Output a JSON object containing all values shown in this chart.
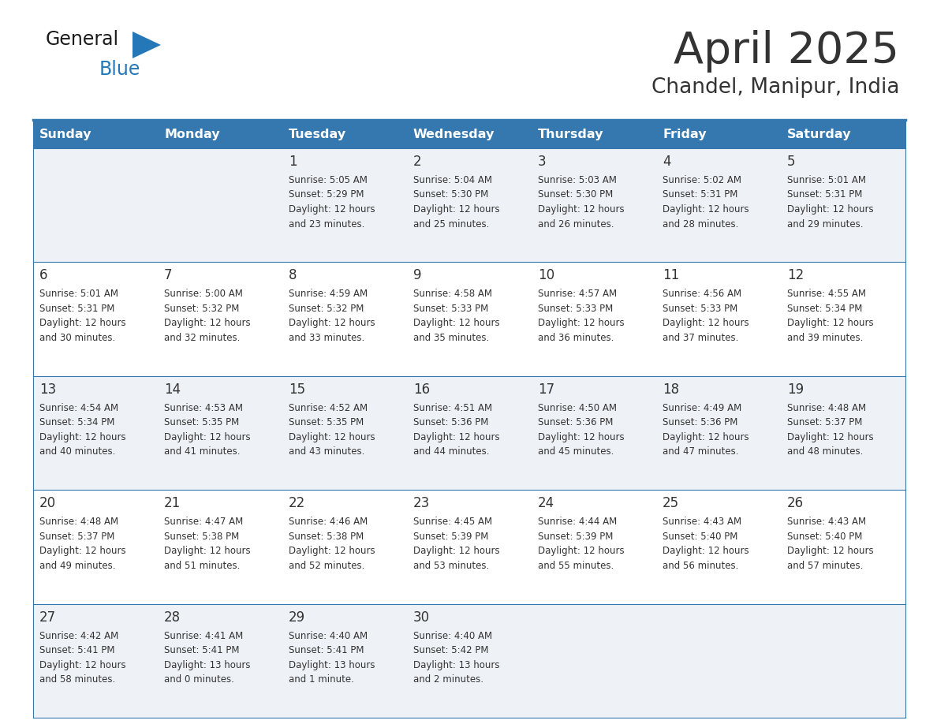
{
  "title": "April 2025",
  "subtitle": "Chandel, Manipur, India",
  "header_bg": "#3578b0",
  "header_text": "#ffffff",
  "cell_bg_odd": "#eef2f7",
  "cell_bg_even": "#ffffff",
  "border_color": "#3578b0",
  "text_color": "#333333",
  "logo_general_color": "#1a1a1a",
  "logo_blue_color": "#2478b8",
  "logo_triangle_color": "#2478b8",
  "days_of_week": [
    "Sunday",
    "Monday",
    "Tuesday",
    "Wednesday",
    "Thursday",
    "Friday",
    "Saturday"
  ],
  "weeks": [
    [
      {
        "day": "",
        "sunrise": "",
        "sunset": "",
        "daylight": ""
      },
      {
        "day": "",
        "sunrise": "",
        "sunset": "",
        "daylight": ""
      },
      {
        "day": "1",
        "sunrise": "Sunrise: 5:05 AM",
        "sunset": "Sunset: 5:29 PM",
        "daylight": "Daylight: 12 hours\nand 23 minutes."
      },
      {
        "day": "2",
        "sunrise": "Sunrise: 5:04 AM",
        "sunset": "Sunset: 5:30 PM",
        "daylight": "Daylight: 12 hours\nand 25 minutes."
      },
      {
        "day": "3",
        "sunrise": "Sunrise: 5:03 AM",
        "sunset": "Sunset: 5:30 PM",
        "daylight": "Daylight: 12 hours\nand 26 minutes."
      },
      {
        "day": "4",
        "sunrise": "Sunrise: 5:02 AM",
        "sunset": "Sunset: 5:31 PM",
        "daylight": "Daylight: 12 hours\nand 28 minutes."
      },
      {
        "day": "5",
        "sunrise": "Sunrise: 5:01 AM",
        "sunset": "Sunset: 5:31 PM",
        "daylight": "Daylight: 12 hours\nand 29 minutes."
      }
    ],
    [
      {
        "day": "6",
        "sunrise": "Sunrise: 5:01 AM",
        "sunset": "Sunset: 5:31 PM",
        "daylight": "Daylight: 12 hours\nand 30 minutes."
      },
      {
        "day": "7",
        "sunrise": "Sunrise: 5:00 AM",
        "sunset": "Sunset: 5:32 PM",
        "daylight": "Daylight: 12 hours\nand 32 minutes."
      },
      {
        "day": "8",
        "sunrise": "Sunrise: 4:59 AM",
        "sunset": "Sunset: 5:32 PM",
        "daylight": "Daylight: 12 hours\nand 33 minutes."
      },
      {
        "day": "9",
        "sunrise": "Sunrise: 4:58 AM",
        "sunset": "Sunset: 5:33 PM",
        "daylight": "Daylight: 12 hours\nand 35 minutes."
      },
      {
        "day": "10",
        "sunrise": "Sunrise: 4:57 AM",
        "sunset": "Sunset: 5:33 PM",
        "daylight": "Daylight: 12 hours\nand 36 minutes."
      },
      {
        "day": "11",
        "sunrise": "Sunrise: 4:56 AM",
        "sunset": "Sunset: 5:33 PM",
        "daylight": "Daylight: 12 hours\nand 37 minutes."
      },
      {
        "day": "12",
        "sunrise": "Sunrise: 4:55 AM",
        "sunset": "Sunset: 5:34 PM",
        "daylight": "Daylight: 12 hours\nand 39 minutes."
      }
    ],
    [
      {
        "day": "13",
        "sunrise": "Sunrise: 4:54 AM",
        "sunset": "Sunset: 5:34 PM",
        "daylight": "Daylight: 12 hours\nand 40 minutes."
      },
      {
        "day": "14",
        "sunrise": "Sunrise: 4:53 AM",
        "sunset": "Sunset: 5:35 PM",
        "daylight": "Daylight: 12 hours\nand 41 minutes."
      },
      {
        "day": "15",
        "sunrise": "Sunrise: 4:52 AM",
        "sunset": "Sunset: 5:35 PM",
        "daylight": "Daylight: 12 hours\nand 43 minutes."
      },
      {
        "day": "16",
        "sunrise": "Sunrise: 4:51 AM",
        "sunset": "Sunset: 5:36 PM",
        "daylight": "Daylight: 12 hours\nand 44 minutes."
      },
      {
        "day": "17",
        "sunrise": "Sunrise: 4:50 AM",
        "sunset": "Sunset: 5:36 PM",
        "daylight": "Daylight: 12 hours\nand 45 minutes."
      },
      {
        "day": "18",
        "sunrise": "Sunrise: 4:49 AM",
        "sunset": "Sunset: 5:36 PM",
        "daylight": "Daylight: 12 hours\nand 47 minutes."
      },
      {
        "day": "19",
        "sunrise": "Sunrise: 4:48 AM",
        "sunset": "Sunset: 5:37 PM",
        "daylight": "Daylight: 12 hours\nand 48 minutes."
      }
    ],
    [
      {
        "day": "20",
        "sunrise": "Sunrise: 4:48 AM",
        "sunset": "Sunset: 5:37 PM",
        "daylight": "Daylight: 12 hours\nand 49 minutes."
      },
      {
        "day": "21",
        "sunrise": "Sunrise: 4:47 AM",
        "sunset": "Sunset: 5:38 PM",
        "daylight": "Daylight: 12 hours\nand 51 minutes."
      },
      {
        "day": "22",
        "sunrise": "Sunrise: 4:46 AM",
        "sunset": "Sunset: 5:38 PM",
        "daylight": "Daylight: 12 hours\nand 52 minutes."
      },
      {
        "day": "23",
        "sunrise": "Sunrise: 4:45 AM",
        "sunset": "Sunset: 5:39 PM",
        "daylight": "Daylight: 12 hours\nand 53 minutes."
      },
      {
        "day": "24",
        "sunrise": "Sunrise: 4:44 AM",
        "sunset": "Sunset: 5:39 PM",
        "daylight": "Daylight: 12 hours\nand 55 minutes."
      },
      {
        "day": "25",
        "sunrise": "Sunrise: 4:43 AM",
        "sunset": "Sunset: 5:40 PM",
        "daylight": "Daylight: 12 hours\nand 56 minutes."
      },
      {
        "day": "26",
        "sunrise": "Sunrise: 4:43 AM",
        "sunset": "Sunset: 5:40 PM",
        "daylight": "Daylight: 12 hours\nand 57 minutes."
      }
    ],
    [
      {
        "day": "27",
        "sunrise": "Sunrise: 4:42 AM",
        "sunset": "Sunset: 5:41 PM",
        "daylight": "Daylight: 12 hours\nand 58 minutes."
      },
      {
        "day": "28",
        "sunrise": "Sunrise: 4:41 AM",
        "sunset": "Sunset: 5:41 PM",
        "daylight": "Daylight: 13 hours\nand 0 minutes."
      },
      {
        "day": "29",
        "sunrise": "Sunrise: 4:40 AM",
        "sunset": "Sunset: 5:41 PM",
        "daylight": "Daylight: 13 hours\nand 1 minute."
      },
      {
        "day": "30",
        "sunrise": "Sunrise: 4:40 AM",
        "sunset": "Sunset: 5:42 PM",
        "daylight": "Daylight: 13 hours\nand 2 minutes."
      },
      {
        "day": "",
        "sunrise": "",
        "sunset": "",
        "daylight": ""
      },
      {
        "day": "",
        "sunrise": "",
        "sunset": "",
        "daylight": ""
      },
      {
        "day": "",
        "sunrise": "",
        "sunset": "",
        "daylight": ""
      }
    ]
  ]
}
